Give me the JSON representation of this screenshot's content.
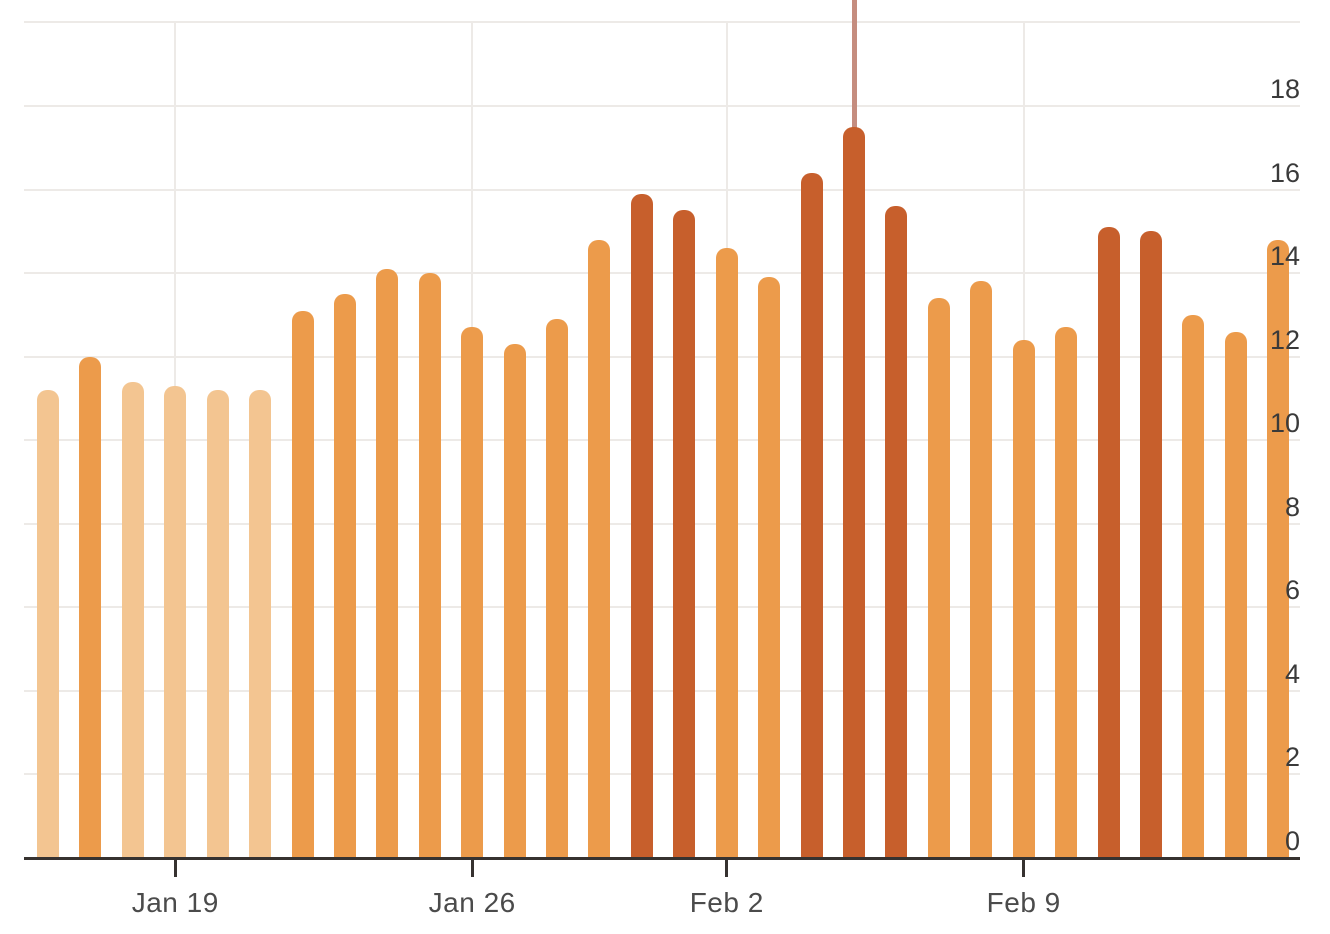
{
  "chart_data": {
    "type": "bar",
    "title": "",
    "legend": "none",
    "grid": true,
    "bar_count": 30,
    "values": [
      11.2,
      12.0,
      11.4,
      11.3,
      11.2,
      11.2,
      13.1,
      13.5,
      14.1,
      14.0,
      12.7,
      12.3,
      12.9,
      14.8,
      15.9,
      15.5,
      14.6,
      13.9,
      16.4,
      17.5,
      15.6,
      13.4,
      13.8,
      12.4,
      12.7,
      15.1,
      15.0,
      13.0,
      12.6,
      14.8
    ],
    "bar_color_levels": [
      "light",
      "medium",
      "light",
      "light",
      "light",
      "light",
      "medium",
      "medium",
      "medium",
      "medium",
      "medium",
      "medium",
      "medium",
      "medium",
      "dark",
      "dark",
      "medium",
      "medium",
      "dark",
      "dark",
      "dark",
      "medium",
      "medium",
      "medium",
      "medium",
      "dark",
      "dark",
      "medium",
      "medium",
      "medium"
    ],
    "palette": {
      "light": "#f3c591",
      "medium": "#ec9b4b",
      "dark": "#c75f2c"
    },
    "x_ticks": [
      {
        "label": "Jan 19",
        "bar_index": 3
      },
      {
        "label": "Jan 26",
        "bar_index": 10
      },
      {
        "label": "Feb 2",
        "bar_index": 16
      },
      {
        "label": "Feb 9",
        "bar_index": 23
      }
    ],
    "y_tick_labels": [
      "0",
      "2",
      "4",
      "6",
      "8",
      "10",
      "12",
      "14",
      "16",
      "18"
    ],
    "ylim": [
      0,
      20
    ],
    "y_gridline_step": 2,
    "axis_pointer": {
      "bar_index": 19,
      "color": "#c58d7f"
    },
    "colors": {
      "background": "#ffffff",
      "gridline": "#edeae7",
      "axis_line": "#363230",
      "y_label": "#3a3a3a",
      "x_label": "#4b4b4b"
    }
  }
}
